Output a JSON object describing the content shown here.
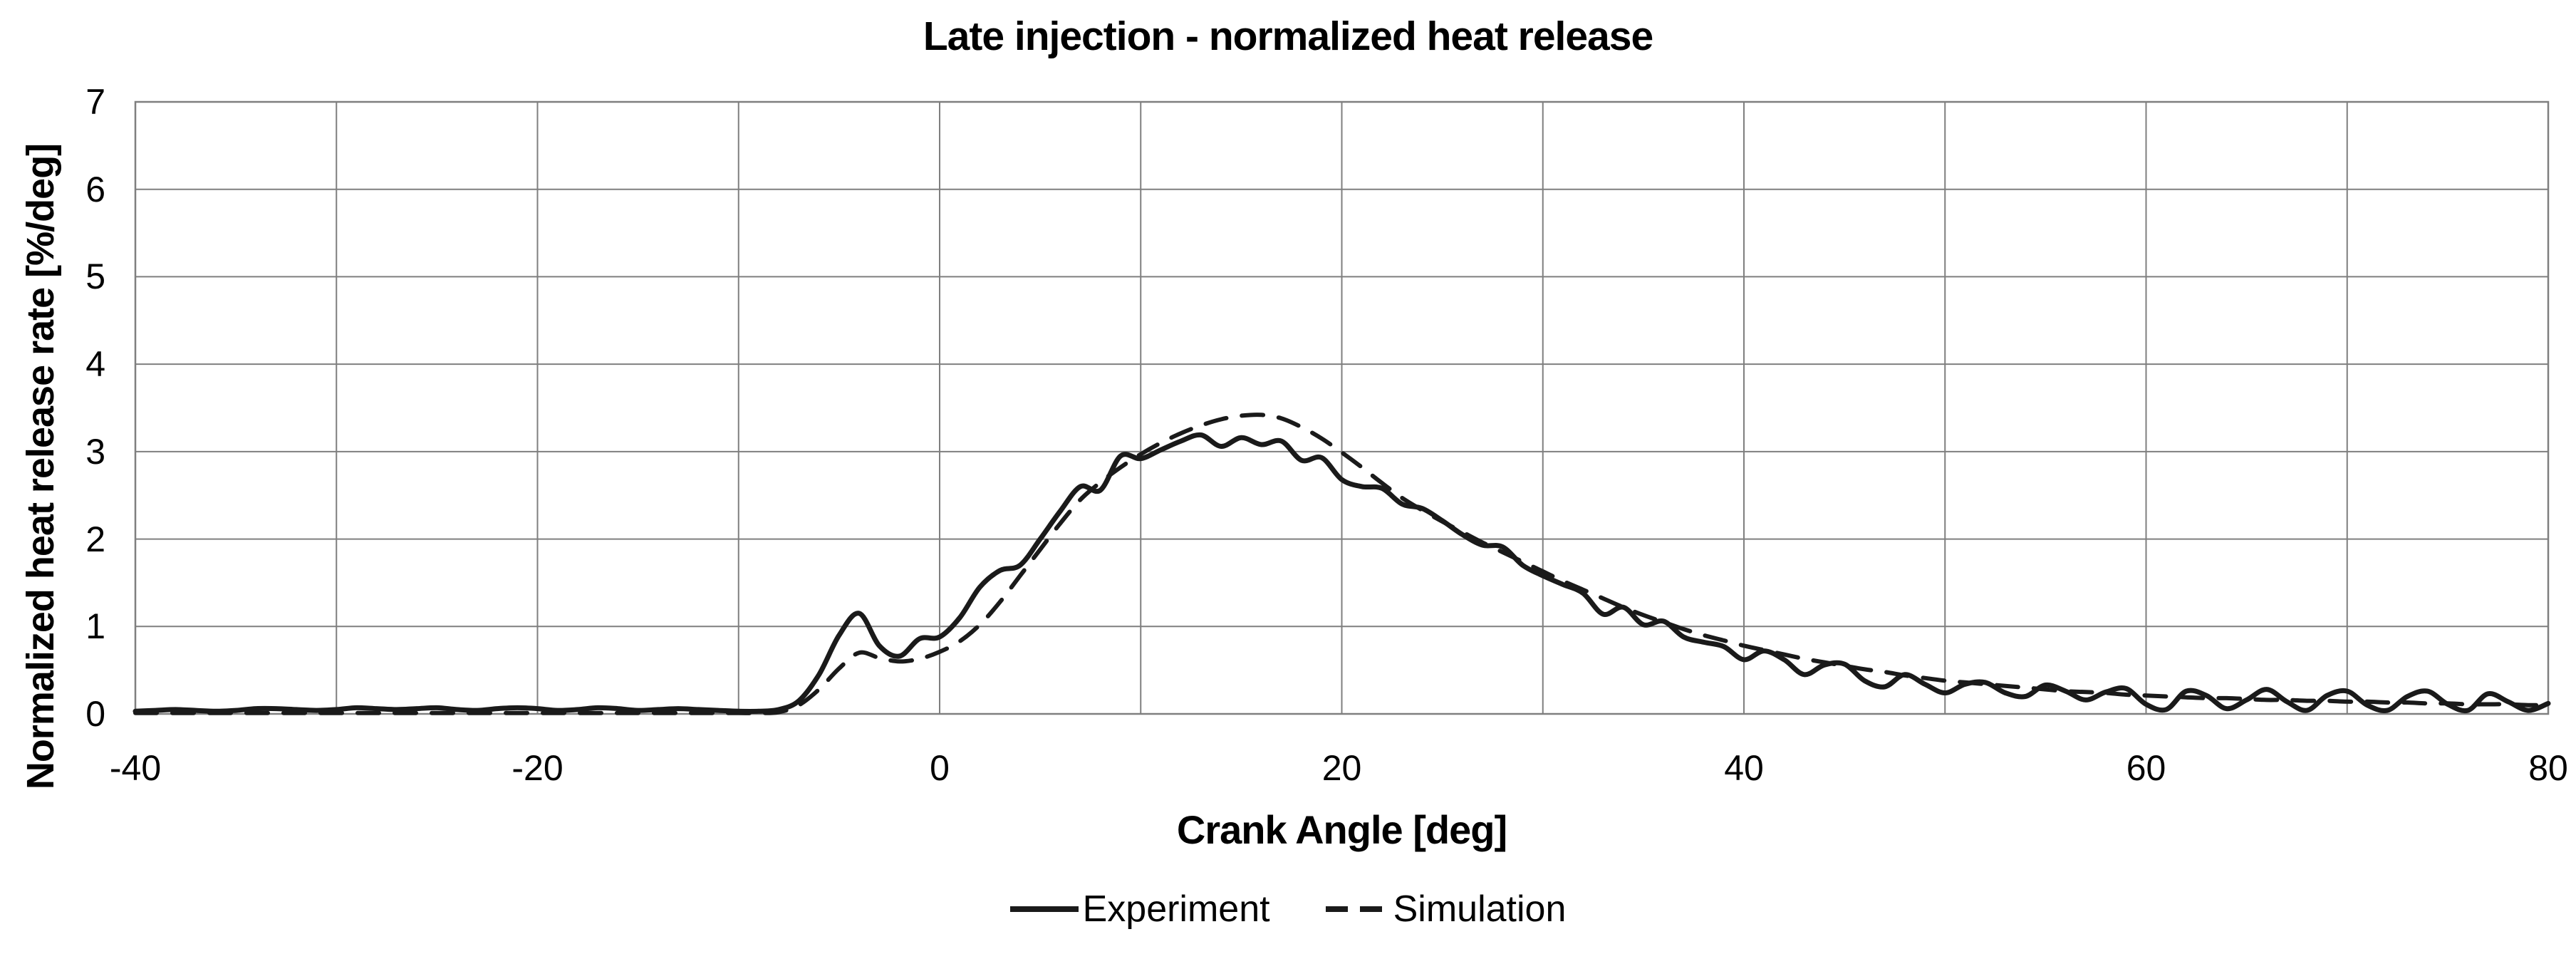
{
  "chart_data": {
    "type": "line",
    "title": "Late injection - normalized heat release",
    "xlabel": "Crank Angle [deg]",
    "ylabel": "Normalized heat release rate [%/deg]",
    "xlim": [
      -40,
      80
    ],
    "ylim": [
      0,
      7
    ],
    "x_ticks": [
      -40,
      -20,
      0,
      20,
      40,
      60,
      80
    ],
    "y_ticks": [
      0,
      1,
      2,
      3,
      4,
      5,
      6,
      7
    ],
    "x_grid_step": 10,
    "y_grid_step": 1,
    "grid": true,
    "legend_position": "bottom",
    "colors": {
      "line": "#1a1a1a",
      "grid": "#7f7f7f",
      "background": "#ffffff",
      "text": "#000000"
    },
    "x": [
      -40,
      -39,
      -38,
      -37,
      -36,
      -35,
      -34,
      -33,
      -32,
      -31,
      -30,
      -29,
      -28,
      -27,
      -26,
      -25,
      -24,
      -23,
      -22,
      -21,
      -20,
      -19,
      -18,
      -17,
      -16,
      -15,
      -14,
      -13,
      -12,
      -11,
      -10,
      -9,
      -8,
      -7,
      -6,
      -5,
      -4,
      -3,
      -2,
      -1,
      0,
      1,
      2,
      3,
      4,
      5,
      6,
      7,
      8,
      9,
      10,
      11,
      12,
      13,
      14,
      15,
      16,
      17,
      18,
      19,
      20,
      21,
      22,
      23,
      24,
      25,
      26,
      27,
      28,
      29,
      30,
      31,
      32,
      33,
      34,
      35,
      36,
      37,
      38,
      39,
      40,
      41,
      42,
      43,
      44,
      45,
      46,
      47,
      48,
      49,
      50,
      51,
      52,
      53,
      54,
      55,
      56,
      57,
      58,
      59,
      60,
      61,
      62,
      63,
      64,
      65,
      66,
      67,
      68,
      69,
      70,
      71,
      72,
      73,
      74,
      75,
      76,
      77,
      78,
      79,
      80
    ],
    "series": [
      {
        "name": "Experiment",
        "style": "solid",
        "color": "#1a1a1a",
        "values": [
          0.03,
          0.04,
          0.05,
          0.04,
          0.03,
          0.04,
          0.06,
          0.06,
          0.05,
          0.04,
          0.05,
          0.07,
          0.06,
          0.05,
          0.06,
          0.07,
          0.05,
          0.04,
          0.06,
          0.07,
          0.06,
          0.04,
          0.05,
          0.07,
          0.06,
          0.04,
          0.05,
          0.06,
          0.05,
          0.04,
          0.03,
          0.03,
          0.05,
          0.15,
          0.45,
          0.9,
          1.15,
          0.78,
          0.66,
          0.86,
          0.88,
          1.1,
          1.45,
          1.64,
          1.7,
          2.0,
          2.32,
          2.6,
          2.56,
          2.95,
          2.92,
          3.02,
          3.12,
          3.19,
          3.06,
          3.16,
          3.08,
          3.12,
          2.9,
          2.93,
          2.68,
          2.6,
          2.58,
          2.4,
          2.35,
          2.21,
          2.05,
          1.93,
          1.91,
          1.7,
          1.58,
          1.48,
          1.38,
          1.14,
          1.22,
          1.02,
          1.06,
          0.88,
          0.82,
          0.77,
          0.62,
          0.72,
          0.62,
          0.45,
          0.56,
          0.57,
          0.38,
          0.31,
          0.45,
          0.34,
          0.24,
          0.34,
          0.36,
          0.24,
          0.2,
          0.33,
          0.26,
          0.16,
          0.25,
          0.29,
          0.11,
          0.05,
          0.26,
          0.21,
          0.06,
          0.16,
          0.28,
          0.14,
          0.04,
          0.21,
          0.26,
          0.1,
          0.04,
          0.2,
          0.26,
          0.11,
          0.04,
          0.23,
          0.14,
          0.04,
          0.12
        ]
      },
      {
        "name": "Simulation",
        "style": "dashed",
        "color": "#1a1a1a",
        "values": [
          0.01,
          0.01,
          0.01,
          0.01,
          0.01,
          0.01,
          0.01,
          0.01,
          0.01,
          0.01,
          0.01,
          0.01,
          0.01,
          0.01,
          0.01,
          0.01,
          0.01,
          0.01,
          0.01,
          0.01,
          0.01,
          0.01,
          0.01,
          0.01,
          0.01,
          0.01,
          0.01,
          0.01,
          0.01,
          0.01,
          0.01,
          0.01,
          0.02,
          0.1,
          0.28,
          0.52,
          0.7,
          0.64,
          0.6,
          0.63,
          0.71,
          0.83,
          1.02,
          1.28,
          1.58,
          1.88,
          2.18,
          2.45,
          2.65,
          2.82,
          2.97,
          3.1,
          3.21,
          3.3,
          3.37,
          3.41,
          3.42,
          3.38,
          3.28,
          3.15,
          2.99,
          2.82,
          2.64,
          2.47,
          2.33,
          2.2,
          2.08,
          1.96,
          1.85,
          1.74,
          1.63,
          1.52,
          1.42,
          1.32,
          1.22,
          1.13,
          1.05,
          0.97,
          0.9,
          0.84,
          0.78,
          0.73,
          0.68,
          0.63,
          0.59,
          0.55,
          0.51,
          0.48,
          0.44,
          0.41,
          0.38,
          0.36,
          0.34,
          0.32,
          0.3,
          0.28,
          0.26,
          0.25,
          0.24,
          0.22,
          0.21,
          0.2,
          0.19,
          0.18,
          0.18,
          0.17,
          0.16,
          0.16,
          0.15,
          0.15,
          0.14,
          0.14,
          0.13,
          0.13,
          0.12,
          0.12,
          0.11,
          0.11,
          0.11,
          0.1,
          0.1
        ]
      }
    ]
  }
}
